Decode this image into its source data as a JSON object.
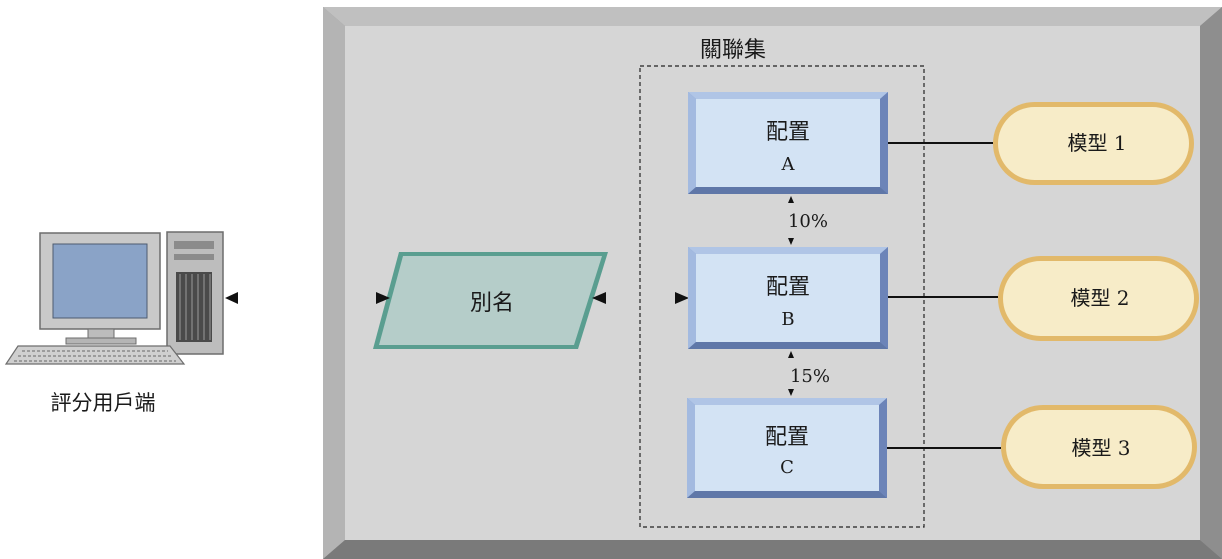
{
  "client": {
    "label": "評分用戶端",
    "icon": "desktop-computer-icon"
  },
  "panel": {
    "title": "關聯集"
  },
  "alias": {
    "label": "別名"
  },
  "configs": [
    {
      "title": "配置",
      "letter": "A"
    },
    {
      "title": "配置",
      "letter": "B"
    },
    {
      "title": "配置",
      "letter": "C"
    }
  ],
  "splits": [
    "10%",
    "15%"
  ],
  "models": [
    {
      "label": "模型 1"
    },
    {
      "label": "模型 2"
    },
    {
      "label": "模型 3"
    }
  ],
  "colors": {
    "panel": "#d6d6d6",
    "config_fill": "#d3e3f4",
    "config_border": "#7b95c6",
    "alias_fill": "#b5cdc9",
    "alias_border": "#5a9e90",
    "model_fill": "#f7ecc8",
    "model_border": "#e2b96a"
  }
}
